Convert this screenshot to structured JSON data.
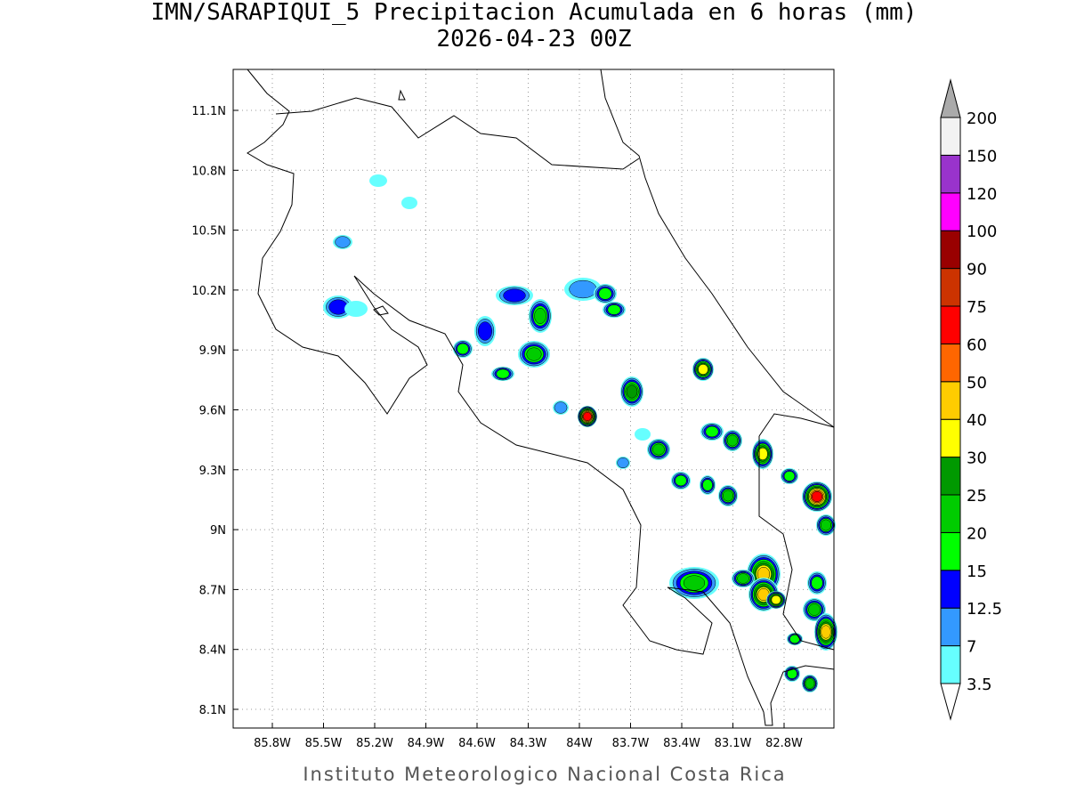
{
  "header": {
    "title": "IMN/SARAPIQUI_5 Precipitacion Acumulada en 6 horas (mm)",
    "subtitle": "2026-04-23 00Z"
  },
  "map": {
    "lon_ticks": [
      "85.8W",
      "85.5W",
      "85.2W",
      "84.9W",
      "84.6W",
      "84.3W",
      "84W",
      "83.7W",
      "83.4W",
      "83.1W",
      "82.8W"
    ],
    "lat_ticks": [
      "11.1N",
      "10.8N",
      "10.5N",
      "10.2N",
      "9.9N",
      "9.6N",
      "9.3N",
      "9N",
      "8.7N",
      "8.4N",
      "8.1N"
    ]
  },
  "legend": {
    "labels": [
      "3.5",
      "7",
      "12.5",
      "15",
      "20",
      "25",
      "30",
      "40",
      "50",
      "60",
      "75",
      "90",
      "100",
      "120",
      "150",
      "200"
    ],
    "colors": [
      "#66ffff",
      "#3399ff",
      "#0000ff",
      "#00ff00",
      "#00cc00",
      "#009900",
      "#ffff00",
      "#ffcc00",
      "#ff6600",
      "#ff0000",
      "#cc3300",
      "#990000",
      "#ff00ff",
      "#9933cc",
      "#f2f2f2"
    ],
    "over_color": "#aaaaaa",
    "under_color": "#ffffff"
  },
  "footer": "Instituto Meteorologico Nacional Costa Rica"
}
